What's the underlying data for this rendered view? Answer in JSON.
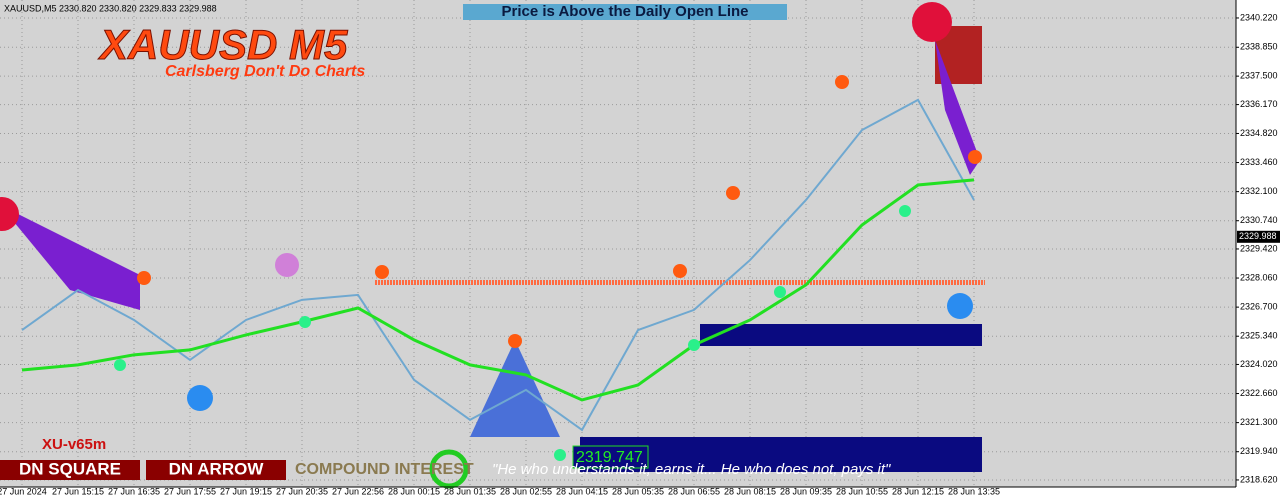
{
  "header": "XAUUSD,M5  2330.820 2330.820 2329.833 2329.988",
  "banner": "Price is Above the Daily Open Line",
  "indicator_name": "XU-v65m",
  "buttons": [
    "DN SQUARE",
    "DN ARROW"
  ],
  "compound": "COMPOUND INTEREST",
  "quote": "\"He who understands it, earns it... He who does not, pays it\"",
  "low_label": 2319.747,
  "chart_data": {
    "type": "line",
    "title": "XAUUSD M5",
    "subtitle": "Carlsberg Don't Do Charts",
    "categories": [
      "27 Jun 2024",
      "27 Jun 15:15",
      "27 Jun 16:35",
      "27 Jun 17:55",
      "27 Jun 19:15",
      "27 Jun 20:35",
      "27 Jun 22:56",
      "28 Jun 00:15",
      "28 Jun 01:35",
      "28 Jun 02:55",
      "28 Jun 04:15",
      "28 Jun 05:35",
      "28 Jun 06:55",
      "28 Jun 08:15",
      "28 Jun 09:35",
      "28 Jun 10:55",
      "28 Jun 12:15",
      "28 Jun 13:35"
    ],
    "series": [
      {
        "name": "Price",
        "color": "#6fa8d0",
        "values": [
          2325.63,
          2327.5,
          2326.1,
          2324.23,
          2326.1,
          2327.04,
          2327.27,
          2323.3,
          2321.43,
          2322.83,
          2320.96,
          2325.63,
          2326.57,
          2328.9,
          2331.71,
          2334.98,
          2336.39,
          2331.71
        ]
      },
      {
        "name": "Trend",
        "color": "#22e022",
        "values": [
          2323.76,
          2324.0,
          2324.47,
          2324.7,
          2325.4,
          2326.01,
          2326.66,
          2325.17,
          2324.0,
          2323.53,
          2322.36,
          2323.06,
          2324.93,
          2326.1,
          2327.74,
          2330.54,
          2332.41,
          2332.65
        ]
      }
    ],
    "daily_open": 2327.85,
    "current_price": 2329.988,
    "ylim": [
      2318.29,
      2341.06
    ],
    "yticks": [
      {
        "value": 2340.22,
        "label": "2340.220"
      },
      {
        "value": 2338.85,
        "label": "2338.850"
      },
      {
        "value": 2337.5,
        "label": "2337.500"
      },
      {
        "value": 2336.17,
        "label": "2336.170"
      },
      {
        "value": 2334.82,
        "label": "2334.820"
      },
      {
        "value": 2333.46,
        "label": "2333.460"
      },
      {
        "value": 2332.1,
        "label": "2332.100"
      },
      {
        "value": 2330.74,
        "label": "2330.740"
      },
      {
        "value": 2329.42,
        "label": "2329.420"
      },
      {
        "value": 2328.06,
        "label": "2328.060"
      },
      {
        "value": 2326.7,
        "label": "2326.700"
      },
      {
        "value": 2325.34,
        "label": "2325.340"
      },
      {
        "value": 2324.02,
        "label": "2324.020"
      },
      {
        "value": 2322.66,
        "label": "2322.660"
      },
      {
        "value": 2321.3,
        "label": "2321.300"
      },
      {
        "value": 2319.94,
        "label": "2319.940"
      },
      {
        "value": 2318.62,
        "label": "2318.620"
      }
    ],
    "grid": true
  }
}
